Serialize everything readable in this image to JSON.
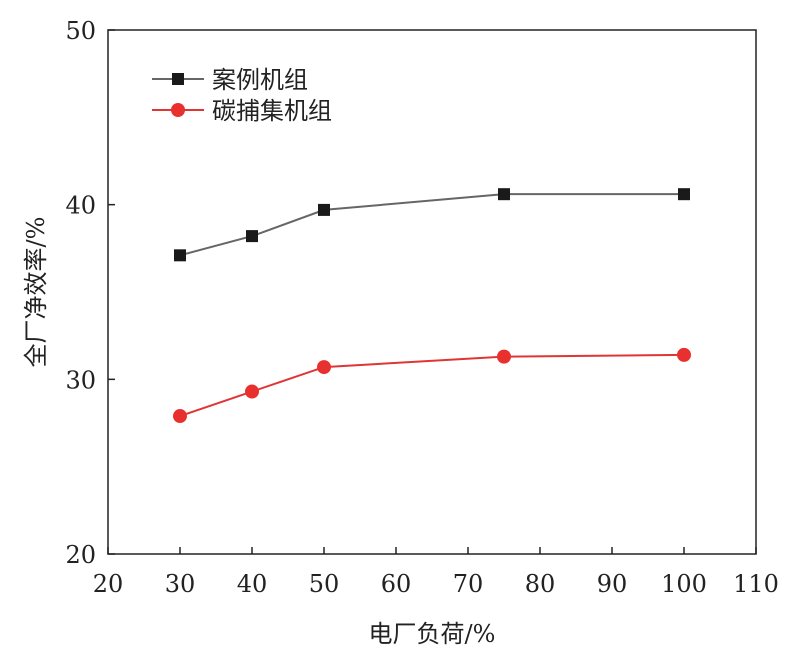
{
  "chart_data": {
    "type": "line",
    "title": "",
    "xlabel": "电厂负荷/%",
    "ylabel": "全厂净效率/%",
    "xlim": [
      20,
      110
    ],
    "ylim": [
      20,
      50
    ],
    "xticks": [
      20,
      30,
      40,
      50,
      60,
      70,
      80,
      90,
      100,
      110
    ],
    "yticks": [
      20,
      30,
      40,
      50
    ],
    "grid": false,
    "legend_position": "top-left",
    "x": [
      30,
      40,
      50,
      75,
      100
    ],
    "series": [
      {
        "name": "案例机组",
        "values": [
          37.1,
          38.2,
          39.7,
          40.6,
          40.6
        ],
        "marker": "square",
        "line_color": "#666666",
        "marker_color": "#1a1a1a"
      },
      {
        "name": "碳捕集机组",
        "values": [
          27.9,
          29.3,
          30.7,
          31.3,
          31.4
        ],
        "marker": "circle",
        "line_color": "#e03535",
        "marker_color": "#e8302f"
      }
    ]
  }
}
